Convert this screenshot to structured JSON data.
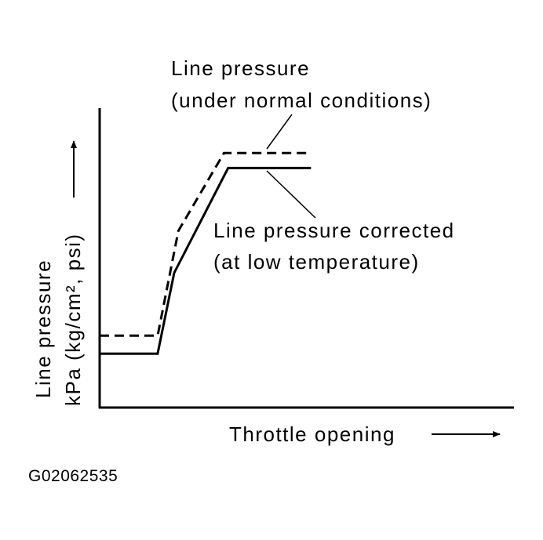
{
  "chart_data": {
    "type": "line",
    "title": "",
    "xlabel": "Throttle opening",
    "ylabel_line1": "Line pressure",
    "ylabel_line2": "kPa (kg/cm², psi)",
    "xlim": [
      0,
      100
    ],
    "ylim": [
      0,
      100
    ],
    "grid": false,
    "series": [
      {
        "name": "Line pressure (under normal conditions)",
        "label_line1": "Line pressure",
        "label_line2": "(under normal conditions)",
        "style": "dashed",
        "x": [
          0,
          14,
          19,
          30,
          51
        ],
        "y": [
          24,
          24,
          59,
          85,
          85
        ]
      },
      {
        "name": "Line pressure corrected (at low temperature)",
        "label_line1": "Line pressure corrected",
        "label_line2": "(at low temperature)",
        "style": "solid",
        "x": [
          0,
          14,
          18,
          31,
          51
        ],
        "y": [
          18,
          18,
          45,
          80,
          80
        ]
      }
    ]
  },
  "figure_id": "G02062535"
}
